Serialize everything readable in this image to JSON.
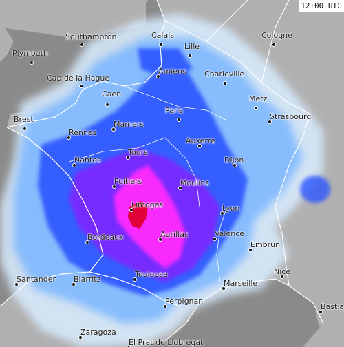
{
  "timestamp": "12:00 UTC",
  "colors": {
    "sea": "#8a8a8a",
    "land": "#b0b0b0",
    "border": "#ffffff",
    "precip_light": "#d8ecff",
    "precip_weak": "#7fb8ff",
    "precip_moderate": "#2f58ff",
    "precip_strong": "#7a2cff",
    "precip_heavy": "#ff2cff",
    "precip_extreme": "#e0003a"
  },
  "cities": [
    {
      "id": "southampton",
      "name": "Southampton"
    },
    {
      "id": "calais",
      "name": "Calais"
    },
    {
      "id": "cologne",
      "name": "Cologne"
    },
    {
      "id": "plymouth",
      "name": "Plymouth"
    },
    {
      "id": "lille",
      "name": "Lille"
    },
    {
      "id": "amiens",
      "name": "Amiens"
    },
    {
      "id": "charleville",
      "name": "Charleville"
    },
    {
      "id": "cap-de-la-hague",
      "name": "Cap de la Hague"
    },
    {
      "id": "caen",
      "name": "Caen"
    },
    {
      "id": "metz",
      "name": "Metz"
    },
    {
      "id": "paris",
      "name": "Paris"
    },
    {
      "id": "brest",
      "name": "Brest"
    },
    {
      "id": "strasbourg",
      "name": "Strasbourg"
    },
    {
      "id": "mamers",
      "name": "Mamers"
    },
    {
      "id": "rennes",
      "name": "Rennes"
    },
    {
      "id": "auxerre",
      "name": "Auxerre"
    },
    {
      "id": "tours",
      "name": "Tours"
    },
    {
      "id": "nantes",
      "name": "Nantes"
    },
    {
      "id": "dijon",
      "name": "Dijon"
    },
    {
      "id": "poitiers",
      "name": "Poitiers"
    },
    {
      "id": "moulins",
      "name": "Moulins"
    },
    {
      "id": "limoges",
      "name": "Limoges"
    },
    {
      "id": "lyon",
      "name": "Lyon"
    },
    {
      "id": "aurillac",
      "name": "Aurillac"
    },
    {
      "id": "valence",
      "name": "Valence"
    },
    {
      "id": "bordeaux",
      "name": "Bordeaux"
    },
    {
      "id": "embrun",
      "name": "Embrun"
    },
    {
      "id": "nice",
      "name": "Nice"
    },
    {
      "id": "toulouse",
      "name": "Toulouse"
    },
    {
      "id": "santander",
      "name": "Santander"
    },
    {
      "id": "biarritz",
      "name": "Biarritz"
    },
    {
      "id": "marseille",
      "name": "Marseille"
    },
    {
      "id": "perpignan",
      "name": "Perpignan"
    },
    {
      "id": "bastia",
      "name": "Bastia"
    },
    {
      "id": "zaragoza",
      "name": "Zaragoza"
    },
    {
      "id": "el-prat-de-llobregat",
      "name": "El Prat de Llobregat"
    }
  ]
}
